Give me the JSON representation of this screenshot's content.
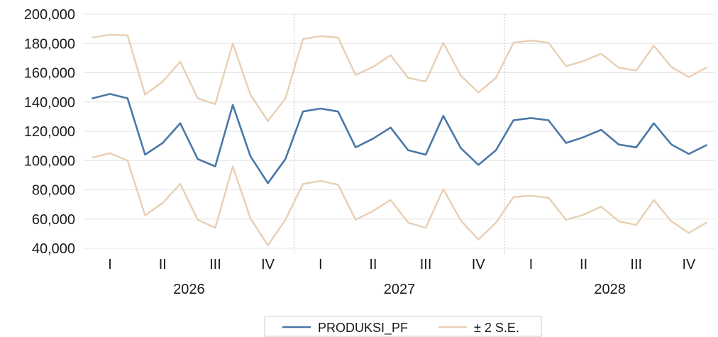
{
  "chart_data": {
    "type": "line",
    "title": "",
    "xlabel": "",
    "ylabel": "",
    "ylim": [
      40000,
      200000
    ],
    "yticks": [
      40000,
      60000,
      80000,
      100000,
      120000,
      140000,
      160000,
      180000,
      200000
    ],
    "ytick_labels": [
      "40,000",
      "60,000",
      "80,000",
      "100,000",
      "120,000",
      "140,000",
      "160,000",
      "180,000",
      "200,000"
    ],
    "grid": true,
    "legend_position": "bottom-center",
    "years": [
      "2026",
      "2027",
      "2028"
    ],
    "quarters": [
      "I",
      "II",
      "III",
      "IV"
    ],
    "months_per_year": 12,
    "series": [
      {
        "name": "PRODUKSI_PF",
        "color": "#4a77a8",
        "values": [
          142500,
          145500,
          142500,
          104000,
          112000,
          125500,
          101000,
          96000,
          138000,
          103000,
          84500,
          101000,
          133500,
          135500,
          133500,
          109000,
          115000,
          122500,
          107000,
          104000,
          130500,
          108500,
          97000,
          107000,
          127500,
          129000,
          127500,
          112000,
          116000,
          121000,
          111000,
          109000,
          125500,
          111000,
          104500,
          110500
        ]
      },
      {
        "name": "± 2 S.E.",
        "color": "#e8cfb3",
        "values": [
          184000,
          186000,
          185500,
          145000,
          154000,
          167500,
          142500,
          138500,
          180000,
          145000,
          127000,
          142500,
          183000,
          185000,
          184000,
          158500,
          164000,
          172000,
          156500,
          154000,
          180500,
          158000,
          146500,
          156500,
          180500,
          182000,
          180500,
          164500,
          168000,
          173000,
          163500,
          161500,
          178500,
          164000,
          157000,
          163500
        ]
      },
      {
        "name": "",
        "color": "#e8cfb3",
        "values": [
          102000,
          105000,
          100000,
          62500,
          71000,
          84000,
          59500,
          54000,
          96000,
          60500,
          42000,
          59500,
          84000,
          86000,
          83500,
          59500,
          65500,
          73000,
          57500,
          54000,
          80500,
          59000,
          46000,
          57500,
          75000,
          76000,
          74500,
          59500,
          63000,
          68500,
          58500,
          56000,
          73000,
          58500,
          50500,
          57500
        ]
      }
    ]
  }
}
